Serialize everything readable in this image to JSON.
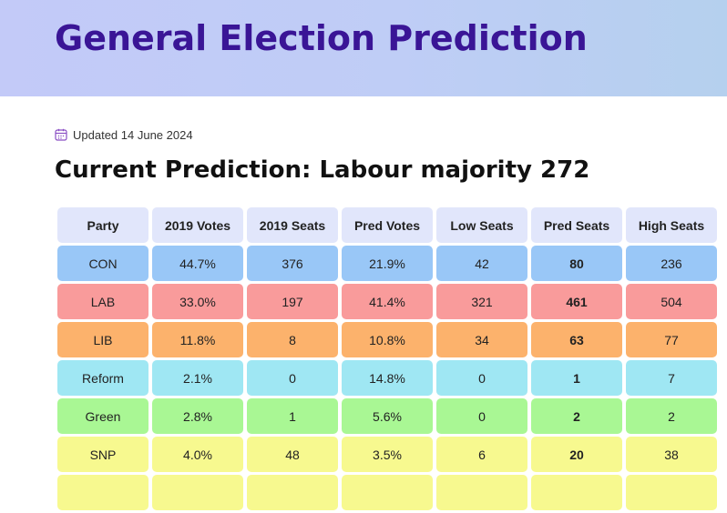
{
  "header": {
    "title": "General Election Prediction"
  },
  "updated": {
    "icon": "calendar-icon",
    "text": "Updated 14 June 2024"
  },
  "prediction_title": "Current Prediction: Labour majority 272",
  "table": {
    "columns": [
      "Party",
      "2019 Votes",
      "2019 Seats",
      "Pred Votes",
      "Low Seats",
      "Pred Seats",
      "High Seats"
    ],
    "rows": [
      {
        "party": "CON",
        "color": "#99c7f7",
        "cells": [
          "CON",
          "44.7%",
          "376",
          "21.9%",
          "42",
          "80",
          "236"
        ]
      },
      {
        "party": "LAB",
        "color": "#f99b9b",
        "cells": [
          "LAB",
          "33.0%",
          "197",
          "41.4%",
          "321",
          "461",
          "504"
        ]
      },
      {
        "party": "LIB",
        "color": "#fcb26c",
        "cells": [
          "LIB",
          "11.8%",
          "8",
          "10.8%",
          "34",
          "63",
          "77"
        ]
      },
      {
        "party": "Reform",
        "color": "#9fe7f3",
        "cells": [
          "Reform",
          "2.1%",
          "0",
          "14.8%",
          "0",
          "1",
          "7"
        ]
      },
      {
        "party": "Green",
        "color": "#a9f794",
        "cells": [
          "Green",
          "2.8%",
          "1",
          "5.6%",
          "0",
          "2",
          "2"
        ]
      },
      {
        "party": "SNP",
        "color": "#f7f98f",
        "cells": [
          "SNP",
          "4.0%",
          "48",
          "3.5%",
          "6",
          "20",
          "38"
        ]
      },
      {
        "party": "",
        "color": "#f7f98f",
        "cells": [
          "",
          "",
          "",
          "",
          "",
          "",
          ""
        ]
      }
    ]
  }
}
